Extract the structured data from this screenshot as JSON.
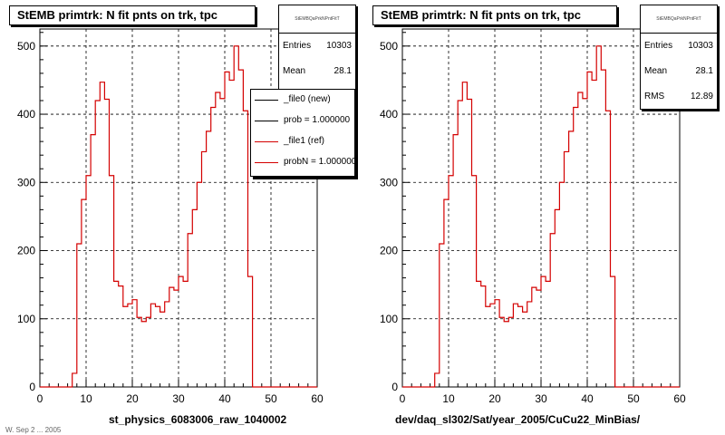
{
  "chart_data": [
    {
      "type": "histogram",
      "title": "StEMB primtrk: N fit pnts on trk, tpc",
      "xlabel": "st_physics_6083006_raw_1040002",
      "ylabel": "",
      "xlim": [
        0,
        60
      ],
      "ylim": [
        0,
        525
      ],
      "x_ticks": [
        0,
        10,
        20,
        30,
        40,
        50,
        60
      ],
      "y_ticks": [
        0,
        100,
        200,
        300,
        400,
        500
      ],
      "grid": true,
      "bin_width": 1,
      "bin_start": 0,
      "stats": {
        "name": "StEMBQaPrkNPntFitT",
        "entries_label": "Entries",
        "entries": "10303",
        "mean_label": "Mean",
        "mean": "28.1"
      },
      "legend": {
        "placement": "top-right",
        "entries": [
          {
            "label": "_file0 (new)",
            "color": "#000000"
          },
          {
            "label": "prob = 1.000000",
            "color": "#000000"
          },
          {
            "label": "_file1 (ref)",
            "color": "#d40000"
          },
          {
            "label": "probN = 1.000000",
            "color": "#d40000"
          }
        ]
      },
      "series": [
        {
          "color": "#d40000",
          "values": [
            0,
            0,
            0,
            0,
            0,
            0,
            0,
            20,
            210,
            275,
            310,
            370,
            420,
            447,
            422,
            310,
            155,
            148,
            118,
            122,
            128,
            102,
            96,
            102,
            122,
            118,
            110,
            125,
            146,
            142,
            162,
            155,
            225,
            260,
            300,
            345,
            375,
            410,
            432,
            423,
            462,
            450,
            500,
            465,
            405,
            162,
            0,
            0,
            0,
            0,
            0,
            0,
            0,
            0,
            0,
            0,
            0,
            0,
            0,
            0
          ]
        }
      ]
    },
    {
      "type": "histogram",
      "title": "StEMB primtrk: N fit pnts on trk, tpc",
      "xlabel": "dev/daq_sl302/Sat/year_2005/CuCu22_MinBias/",
      "ylabel": "",
      "xlim": [
        0,
        60
      ],
      "ylim": [
        0,
        525
      ],
      "x_ticks": [
        0,
        10,
        20,
        30,
        40,
        50,
        60
      ],
      "y_ticks": [
        0,
        100,
        200,
        300,
        400,
        500
      ],
      "grid": true,
      "bin_width": 1,
      "bin_start": 0,
      "stats": {
        "name": "StEMBQaPrkNPntFitT",
        "entries_label": "Entries",
        "entries": "10303",
        "mean_label": "Mean",
        "mean": "28.1",
        "rms_label": "RMS",
        "rms": "12.89"
      },
      "series": [
        {
          "color": "#d40000",
          "values": [
            0,
            0,
            0,
            0,
            0,
            0,
            0,
            20,
            210,
            275,
            310,
            370,
            420,
            447,
            422,
            310,
            155,
            148,
            118,
            122,
            128,
            102,
            96,
            102,
            122,
            118,
            110,
            125,
            146,
            142,
            162,
            155,
            225,
            260,
            300,
            345,
            375,
            410,
            432,
            423,
            462,
            450,
            500,
            465,
            405,
            162,
            0,
            0,
            0,
            0,
            0,
            0,
            0,
            0,
            0,
            0,
            0,
            0,
            0,
            0
          ]
        }
      ]
    }
  ],
  "footer": "W. Sep  2 ... 2005"
}
